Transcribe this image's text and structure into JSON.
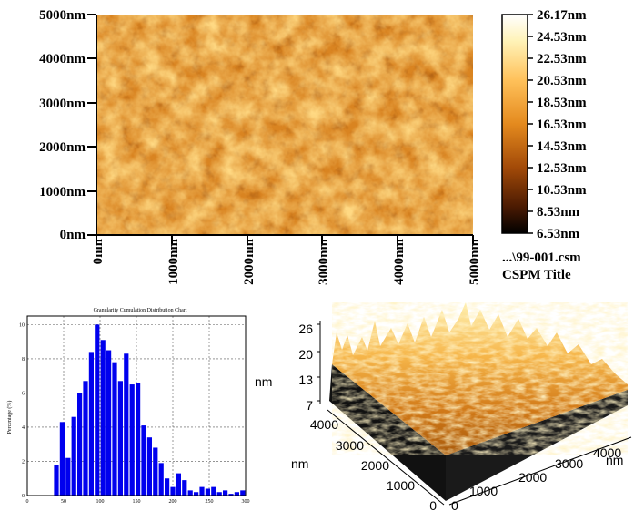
{
  "afm_2d": {
    "y_ticks": [
      "5000nm",
      "4000nm",
      "3000nm",
      "2000nm",
      "1000nm",
      "0nm"
    ],
    "x_ticks": [
      "0nm",
      "1000nm",
      "2000nm",
      "3000nm",
      "4000nm",
      "5000nm"
    ],
    "colorbar_ticks": [
      "26.17nm",
      "24.53nm",
      "22.53nm",
      "20.53nm",
      "18.53nm",
      "16.53nm",
      "14.53nm",
      "12.53nm",
      "10.53nm",
      "8.53nm",
      "6.53nm"
    ],
    "file_name": "...\\99-001.csm",
    "cspm_title": "CSPM Title"
  },
  "histogram": {
    "title": "Granularity Cumulation Distribution Chart",
    "ylabel": "Percentage (%)",
    "xlabel": "",
    "y_ticks": [
      "10",
      "8",
      "6",
      "4",
      "2",
      "0"
    ],
    "x_ticks": [
      "0",
      "50",
      "100",
      "150",
      "200",
      "250",
      "300"
    ]
  },
  "chart_data": {
    "type": "bar",
    "title": "Granularity Cumulation Distribution Chart",
    "ylabel": "Percentage (%)",
    "xlabel": "",
    "xlim": [
      0,
      300
    ],
    "ylim": [
      0,
      10.5
    ],
    "grid": true,
    "bar_width": 8,
    "x": [
      40,
      48,
      56,
      64,
      72,
      80,
      88,
      96,
      104,
      112,
      120,
      128,
      136,
      144,
      152,
      160,
      168,
      176,
      184,
      192,
      200,
      208,
      216,
      224,
      232,
      240,
      248,
      256,
      264,
      272,
      280,
      288,
      296
    ],
    "values": [
      1.8,
      4.3,
      2.2,
      4.6,
      6.0,
      6.7,
      8.4,
      10.0,
      9.1,
      8.5,
      7.8,
      6.7,
      8.3,
      6.5,
      6.6,
      4.1,
      3.4,
      2.8,
      1.9,
      1.0,
      0.5,
      1.3,
      0.9,
      0.3,
      0.2,
      0.5,
      0.4,
      0.5,
      0.2,
      0.3,
      0.1,
      0.2,
      0.3
    ],
    "bar_color": "#0000ee"
  },
  "afm_3d": {
    "z_label": "nm",
    "z_ticks": [
      "26",
      "20",
      "13",
      "7"
    ],
    "y_label": "nm",
    "y_ticks": [
      "4000",
      "3000",
      "2000",
      "1000",
      "0"
    ],
    "x_label": "nm",
    "x_ticks": [
      "0",
      "1000",
      "2000",
      "3000",
      "4000"
    ]
  },
  "colors": {
    "afm_base": "#d8821c",
    "afm_light": "#ffd27a",
    "afm_dark": "#6a2a06",
    "axis": "#000000"
  }
}
